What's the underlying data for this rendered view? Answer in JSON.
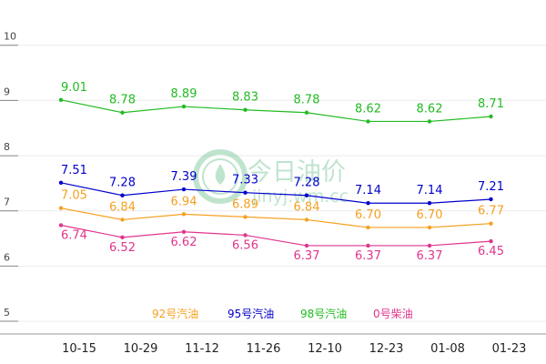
{
  "chart_data": {
    "type": "line",
    "categories": [
      "10-15",
      "10-29",
      "11-12",
      "11-26",
      "12-10",
      "12-23",
      "01-08",
      "01-23"
    ],
    "yticks": [
      5,
      6,
      7,
      8,
      9,
      10
    ],
    "ylim": [
      4.77,
      10.82
    ],
    "series": [
      {
        "name": "92号汽油",
        "color": "#F5A020",
        "values": [
          7.05,
          6.84,
          6.94,
          6.89,
          6.84,
          6.7,
          6.7,
          6.77
        ]
      },
      {
        "name": "95号汽油",
        "color": "#0000CC",
        "values": [
          7.51,
          7.28,
          7.39,
          7.33,
          7.28,
          7.14,
          7.14,
          7.21
        ]
      },
      {
        "name": "98号汽油",
        "color": "#22BB22",
        "values": [
          9.01,
          8.78,
          8.89,
          8.83,
          8.78,
          8.62,
          8.62,
          8.71
        ]
      },
      {
        "name": "0号柴油",
        "color": "#E0358C",
        "values": [
          6.74,
          6.52,
          6.62,
          6.56,
          6.37,
          6.37,
          6.37,
          6.45
        ]
      }
    ]
  },
  "watermark": {
    "title": "今日油价",
    "url": "jinyj.wm.cc",
    "color": "#BFE3CF"
  }
}
